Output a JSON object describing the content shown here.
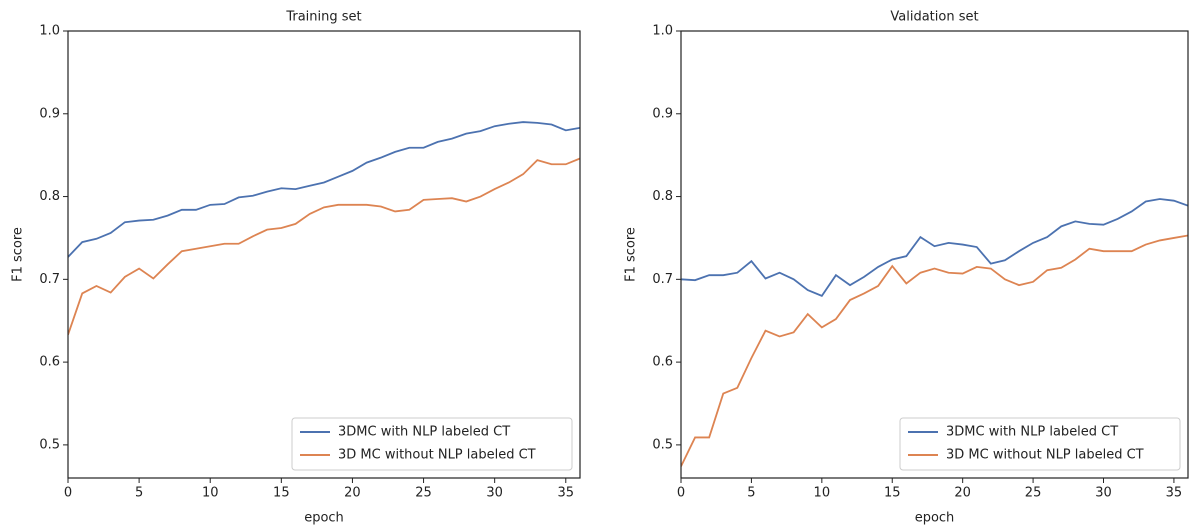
{
  "chart_data": [
    {
      "type": "line",
      "title": "Training set",
      "x_label": "epoch",
      "y_label": "F1 score",
      "x": [
        0,
        1,
        2,
        3,
        4,
        5,
        6,
        7,
        8,
        9,
        10,
        11,
        12,
        13,
        14,
        15,
        16,
        17,
        18,
        19,
        20,
        21,
        22,
        23,
        24,
        25,
        26,
        27,
        28,
        29,
        30,
        31,
        32,
        33,
        34,
        35,
        36
      ],
      "xlim": [
        0,
        36
      ],
      "ylim": [
        0.46,
        1.0
      ],
      "xticks": [
        0,
        5,
        10,
        15,
        20,
        25,
        30,
        35
      ],
      "yticks": [
        0.5,
        0.6,
        0.7,
        0.8,
        0.9,
        {
          "value": 1,
          "label": "1.0"
        }
      ],
      "legend": "lower right",
      "series": [
        {
          "name": "3DMC with NLP labeled CT",
          "color": "#4c72b0",
          "values": [
            0.727,
            0.745,
            0.749,
            0.756,
            0.769,
            0.771,
            0.772,
            0.777,
            0.784,
            0.784,
            0.79,
            0.791,
            0.799,
            0.801,
            0.806,
            0.81,
            0.809,
            0.813,
            0.817,
            0.824,
            0.831,
            0.841,
            0.847,
            0.854,
            0.859,
            0.859,
            0.866,
            0.87,
            0.876,
            0.879,
            0.885,
            0.888,
            0.89,
            0.889,
            0.887,
            0.88,
            0.883
          ]
        },
        {
          "name": "3D MC without NLP labeled CT",
          "color": "#dd8452",
          "values": [
            0.633,
            0.683,
            0.692,
            0.684,
            0.703,
            0.713,
            0.701,
            0.718,
            0.734,
            0.737,
            0.74,
            0.743,
            0.743,
            0.752,
            0.76,
            0.762,
            0.767,
            0.779,
            0.787,
            0.79,
            0.79,
            0.79,
            0.788,
            0.782,
            0.784,
            0.796,
            0.797,
            0.798,
            0.794,
            0.8,
            0.809,
            0.817,
            0.827,
            0.844,
            0.839,
            0.839,
            0.846
          ]
        }
      ]
    },
    {
      "type": "line",
      "title": "Validation set",
      "x_label": "epoch",
      "y_label": "F1 score",
      "x": [
        0,
        1,
        2,
        3,
        4,
        5,
        6,
        7,
        8,
        9,
        10,
        11,
        12,
        13,
        14,
        15,
        16,
        17,
        18,
        19,
        20,
        21,
        22,
        23,
        24,
        25,
        26,
        27,
        28,
        29,
        30,
        31,
        32,
        33,
        34,
        35,
        36
      ],
      "xlim": [
        0,
        36
      ],
      "ylim": [
        0.46,
        1.0
      ],
      "xticks": [
        0,
        5,
        10,
        15,
        20,
        25,
        30,
        35
      ],
      "yticks": [
        0.5,
        0.6,
        0.7,
        0.8,
        0.9,
        {
          "value": 1,
          "label": "1.0"
        }
      ],
      "legend": "lower right",
      "series": [
        {
          "name": "3DMC with NLP labeled CT",
          "color": "#4c72b0",
          "values": [
            0.7,
            0.699,
            0.705,
            0.705,
            0.708,
            0.722,
            0.701,
            0.708,
            0.7,
            0.687,
            0.68,
            0.705,
            0.693,
            0.703,
            0.715,
            0.724,
            0.728,
            0.751,
            0.74,
            0.744,
            0.742,
            0.739,
            0.719,
            0.723,
            0.734,
            0.744,
            0.751,
            0.764,
            0.77,
            0.767,
            0.766,
            0.773,
            0.782,
            0.794,
            0.797,
            0.795,
            0.789
          ]
        },
        {
          "name": "3D MC without NLP labeled CT",
          "color": "#dd8452",
          "values": [
            0.474,
            0.509,
            0.509,
            0.562,
            0.569,
            0.605,
            0.638,
            0.631,
            0.636,
            0.658,
            0.642,
            0.652,
            0.675,
            0.683,
            0.692,
            0.716,
            0.695,
            0.708,
            0.713,
            0.708,
            0.707,
            0.715,
            0.713,
            0.7,
            0.693,
            0.697,
            0.711,
            0.714,
            0.724,
            0.737,
            0.734,
            0.734,
            0.734,
            0.742,
            0.747,
            0.75,
            0.753
          ]
        }
      ]
    }
  ]
}
